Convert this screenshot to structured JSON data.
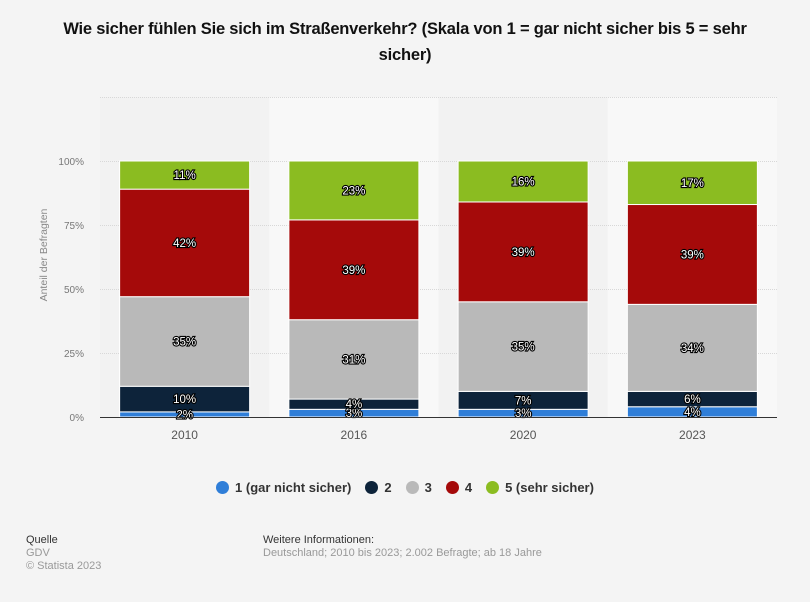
{
  "title": "Wie sicher fühlen Sie sich im Straßenverkehr? (Skala von 1 = gar nicht sicher bis 5 = sehr sicher)",
  "chart_data": {
    "type": "bar",
    "stacked": true,
    "title": "Wie sicher fühlen Sie sich im Straßenverkehr? (Skala von 1 = gar nicht sicher bis 5 = sehr sicher)",
    "xlabel": "",
    "ylabel": "Anteil der Befragten",
    "categories": [
      "2010",
      "2016",
      "2020",
      "2023"
    ],
    "yticks": [
      "0%",
      "25%",
      "50%",
      "75%",
      "100%"
    ],
    "ylim": [
      0,
      125
    ],
    "grid": true,
    "legend_position": "bottom",
    "series": [
      {
        "name": "1 (gar nicht sicher)",
        "color": "#2f7ed8",
        "values": [
          2,
          3,
          3,
          4
        ]
      },
      {
        "name": "2",
        "color": "#0d233a",
        "values": [
          10,
          4,
          7,
          6
        ]
      },
      {
        "name": "3",
        "color": "#b9b9b9",
        "values": [
          35,
          31,
          35,
          34
        ]
      },
      {
        "name": "4",
        "color": "#a50a0a",
        "values": [
          42,
          39,
          39,
          39
        ]
      },
      {
        "name": "5 (sehr sicher)",
        "color": "#8bbc21",
        "values": [
          11,
          23,
          16,
          17
        ]
      }
    ]
  },
  "legend": [
    {
      "label": "1 (gar nicht sicher)",
      "color": "#2f7ed8"
    },
    {
      "label": "2",
      "color": "#0d233a"
    },
    {
      "label": "3",
      "color": "#b9b9b9"
    },
    {
      "label": "4",
      "color": "#a50a0a"
    },
    {
      "label": "5 (sehr sicher)",
      "color": "#8bbc21"
    }
  ],
  "footer": {
    "source_heading": "Quelle",
    "source": "GDV",
    "copyright": "© Statista 2023",
    "info_heading": "Weitere Informationen:",
    "info": "Deutschland; 2010 bis 2023; 2.002 Befragte; ab 18 Jahre"
  }
}
